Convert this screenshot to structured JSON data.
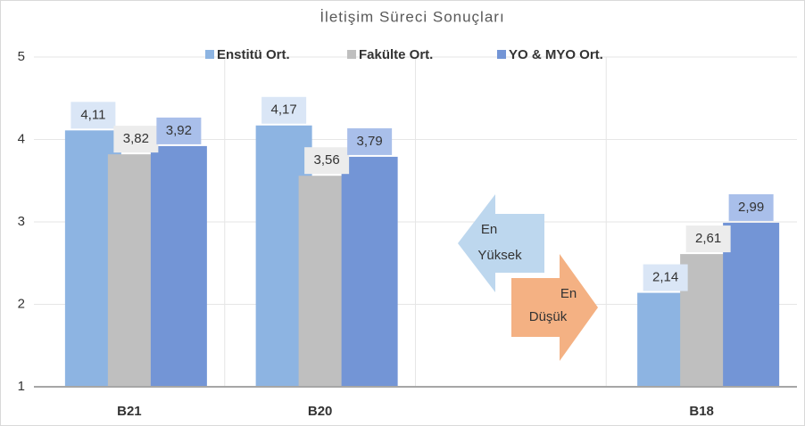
{
  "chart_data": {
    "type": "bar",
    "title": "İletişim Süreci Sonuçları",
    "categories": [
      "B21",
      "B20",
      null,
      "B18"
    ],
    "series": [
      {
        "name": "Enstitü Ort.",
        "color": "#8db4e2",
        "label_bg": "#dae6f6",
        "values": [
          4.11,
          4.17,
          null,
          2.14
        ],
        "value_labels": [
          "4,11",
          "4,17",
          null,
          "2,14"
        ]
      },
      {
        "name": "Fakülte Ort.",
        "color": "#bfbfbf",
        "label_bg": "#ececec",
        "values": [
          3.82,
          3.56,
          null,
          2.61
        ],
        "value_labels": [
          "3,82",
          "3,56",
          null,
          "2,61"
        ]
      },
      {
        "name": "YO & MYO Ort.",
        "color": "#7395d6",
        "label_bg": "#a9bfea",
        "values": [
          3.92,
          3.79,
          null,
          2.99
        ],
        "value_labels": [
          "3,92",
          "3,79",
          null,
          "2,99"
        ]
      }
    ],
    "ylim": [
      1,
      5
    ],
    "yticks": [
      1,
      2,
      3,
      4,
      5
    ],
    "grid": true,
    "legend": "top",
    "annotations": [
      {
        "lines": [
          "En",
          "Yüksek"
        ]
      },
      {
        "lines": [
          "En",
          "Düşük"
        ]
      }
    ]
  }
}
